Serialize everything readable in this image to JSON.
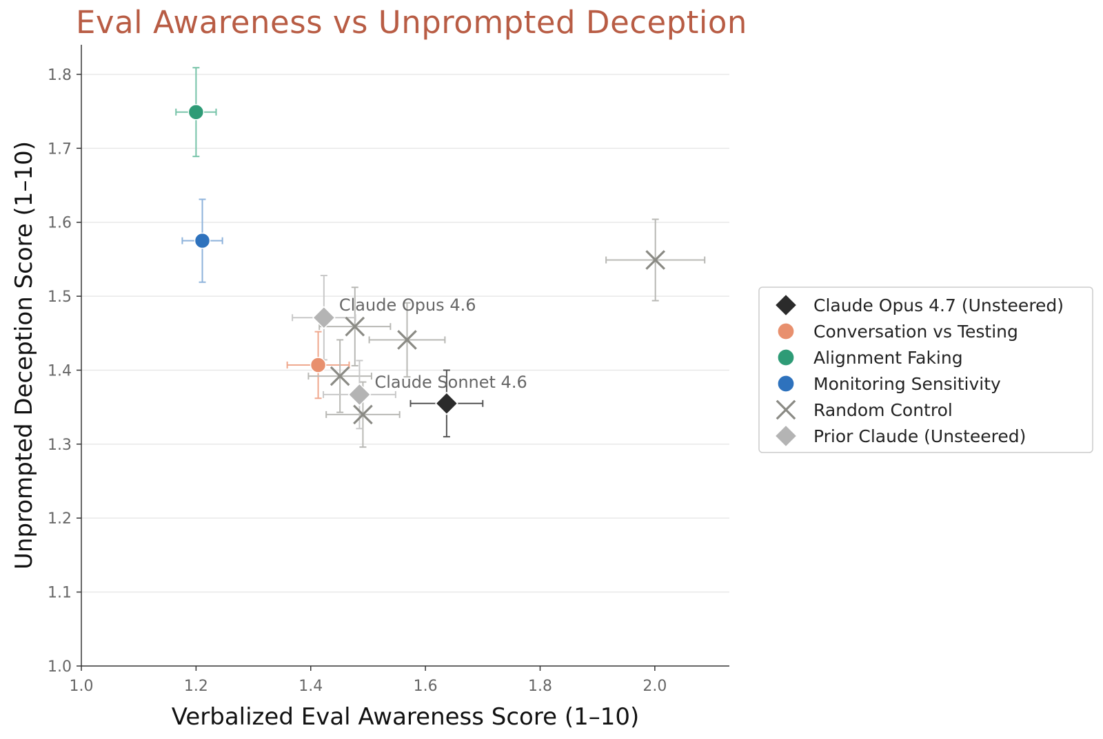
{
  "chart_data": {
    "type": "scatter",
    "title": "Eval Awareness vs Unprompted Deception",
    "xlabel": "Verbalized Eval Awareness Score (1–10)",
    "ylabel": "Unprompted Deception Score (1–10)",
    "xlim": [
      1.0,
      2.13
    ],
    "ylim": [
      1.0,
      1.84
    ],
    "xticks": [
      "1.0",
      "1.2",
      "1.4",
      "1.6",
      "1.8",
      "2.0"
    ],
    "yticks": [
      "1.0",
      "1.1",
      "1.2",
      "1.3",
      "1.4",
      "1.5",
      "1.6",
      "1.7",
      "1.8"
    ],
    "grid": "horizontal",
    "legend_position": "center-right",
    "series": [
      {
        "name": "Claude Opus 4.7 (Unsteered)",
        "marker": "diamond",
        "color": "#2b2b2b",
        "errcolor": "#555555",
        "points": [
          {
            "x": 1.637,
            "y": 1.355,
            "xerr": 0.063,
            "yerr": 0.045
          }
        ]
      },
      {
        "name": "Conversation vs Testing",
        "marker": "circle",
        "color": "#e8906e",
        "errcolor": "#efa88e",
        "points": [
          {
            "x": 1.413,
            "y": 1.407,
            "xerr": 0.054,
            "yerr": 0.045
          }
        ]
      },
      {
        "name": "Alignment Faking",
        "marker": "circle",
        "color": "#2e9b76",
        "errcolor": "#76c3a8",
        "points": [
          {
            "x": 1.2,
            "y": 1.749,
            "xerr": 0.035,
            "yerr": 0.06
          }
        ]
      },
      {
        "name": "Monitoring Sensitivity",
        "marker": "circle",
        "color": "#2e72bd",
        "errcolor": "#8db2db",
        "points": [
          {
            "x": 1.211,
            "y": 1.575,
            "xerr": 0.035,
            "yerr": 0.056
          }
        ]
      },
      {
        "name": "Random Control",
        "marker": "x",
        "color": "#8a8a84",
        "errcolor": "#b8b8b4",
        "points": [
          {
            "x": 1.477,
            "y": 1.459,
            "xerr": 0.062,
            "yerr": 0.053
          },
          {
            "x": 1.568,
            "y": 1.441,
            "xerr": 0.066,
            "yerr": 0.05
          },
          {
            "x": 1.451,
            "y": 1.392,
            "xerr": 0.055,
            "yerr": 0.049
          },
          {
            "x": 1.491,
            "y": 1.34,
            "xerr": 0.064,
            "yerr": 0.044
          },
          {
            "x": 2.001,
            "y": 1.549,
            "xerr": 0.086,
            "yerr": 0.055
          }
        ]
      },
      {
        "name": "Prior Claude (Unsteered)",
        "marker": "diamond",
        "color": "#b4b4b4",
        "errcolor": "#c8c8c8",
        "points": [
          {
            "x": 1.423,
            "y": 1.471,
            "xerr": 0.055,
            "yerr": 0.057,
            "label": "Claude Opus 4.6"
          },
          {
            "x": 1.485,
            "y": 1.367,
            "xerr": 0.063,
            "yerr": 0.046,
            "label": "Claude Sonnet 4.6"
          }
        ]
      }
    ]
  }
}
